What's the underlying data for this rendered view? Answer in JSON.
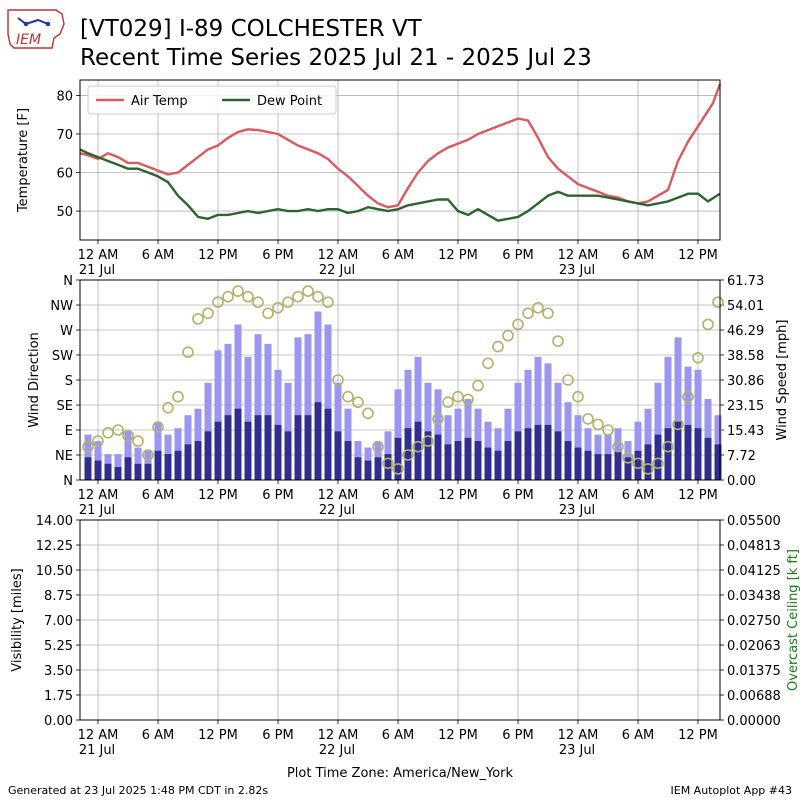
{
  "header": {
    "title_line1": "[VT029] I-89 COLCHESTER  VT",
    "title_line2": "Recent Time Series 2025 Jul 21 - 2025 Jul 23",
    "logo_text": "IEM"
  },
  "footer": {
    "generated": "Generated at 23 Jul 2025 1:48 PM CDT in 2.82s",
    "app": "IEM Autoplot App #43",
    "timezone": "Plot Time Zone: America/New_York"
  },
  "x_axis": {
    "range_hours": [
      -1.8,
      62.2
    ],
    "ticks": [
      {
        "hour": 0,
        "label": "12 AM",
        "sub": "21 Jul"
      },
      {
        "hour": 6,
        "label": "6 AM",
        "sub": ""
      },
      {
        "hour": 12,
        "label": "12 PM",
        "sub": ""
      },
      {
        "hour": 18,
        "label": "6 PM",
        "sub": ""
      },
      {
        "hour": 24,
        "label": "12 AM",
        "sub": "22 Jul"
      },
      {
        "hour": 30,
        "label": "6 AM",
        "sub": ""
      },
      {
        "hour": 36,
        "label": "12 PM",
        "sub": ""
      },
      {
        "hour": 42,
        "label": "6 PM",
        "sub": ""
      },
      {
        "hour": 48,
        "label": "12 AM",
        "sub": "23 Jul"
      },
      {
        "hour": 54,
        "label": "6 AM",
        "sub": ""
      },
      {
        "hour": 60,
        "label": "12 PM",
        "sub": ""
      }
    ]
  },
  "chart_data": [
    {
      "type": "line",
      "ylabel": "Temperature [F]",
      "ylim": [
        42.5,
        84
      ],
      "yticks": [
        50,
        60,
        70,
        80
      ],
      "grid": true,
      "legend": "top-left",
      "x_unit": "hours from 21 Jul 12 AM",
      "series": [
        {
          "name": "Air Temp",
          "color": "#d9595f",
          "points": [
            [
              -1.8,
              65
            ],
            [
              -1,
              64.5
            ],
            [
              0,
              63.5
            ],
            [
              1,
              65
            ],
            [
              2,
              64
            ],
            [
              3,
              62.5
            ],
            [
              4,
              62.5
            ],
            [
              5,
              61.5
            ],
            [
              6,
              60.5
            ],
            [
              7,
              59.5
            ],
            [
              8,
              60
            ],
            [
              9,
              62
            ],
            [
              10,
              64
            ],
            [
              11,
              66
            ],
            [
              12,
              67
            ],
            [
              13,
              69
            ],
            [
              14,
              70.5
            ],
            [
              15,
              71.2
            ],
            [
              16,
              71
            ],
            [
              17,
              70.5
            ],
            [
              18,
              70
            ],
            [
              19,
              68.5
            ],
            [
              20,
              67
            ],
            [
              21,
              66
            ],
            [
              22,
              65
            ],
            [
              23,
              63.5
            ],
            [
              24,
              61
            ],
            [
              25,
              59
            ],
            [
              26,
              56.5
            ],
            [
              27,
              54
            ],
            [
              28,
              52
            ],
            [
              29,
              51
            ],
            [
              30,
              51.5
            ],
            [
              31,
              56
            ],
            [
              32,
              60
            ],
            [
              33,
              63
            ],
            [
              34,
              65
            ],
            [
              35,
              66.5
            ],
            [
              36,
              67.5
            ],
            [
              37,
              68.5
            ],
            [
              38,
              70
            ],
            [
              39,
              71
            ],
            [
              40,
              72
            ],
            [
              41,
              73
            ],
            [
              42,
              74
            ],
            [
              43,
              73.5
            ],
            [
              44,
              69
            ],
            [
              45,
              64
            ],
            [
              46,
              61
            ],
            [
              47,
              59
            ],
            [
              48,
              57
            ],
            [
              49,
              56
            ],
            [
              50,
              55
            ],
            [
              51,
              54
            ],
            [
              52,
              53.5
            ],
            [
              53,
              52.5
            ],
            [
              54,
              52
            ],
            [
              55,
              52.5
            ],
            [
              56,
              54
            ],
            [
              57,
              55.5
            ],
            [
              58,
              63
            ],
            [
              59,
              68
            ],
            [
              60,
              72
            ],
            [
              61,
              76
            ],
            [
              61.5,
              78
            ],
            [
              62.2,
              83
            ]
          ]
        },
        {
          "name": "Dew Point",
          "color": "#2e6330",
          "points": [
            [
              -1.8,
              66
            ],
            [
              -1,
              65
            ],
            [
              0,
              64
            ],
            [
              1,
              63
            ],
            [
              2,
              62
            ],
            [
              3,
              61
            ],
            [
              4,
              61
            ],
            [
              5,
              60
            ],
            [
              6,
              59
            ],
            [
              7,
              57.5
            ],
            [
              8,
              54
            ],
            [
              9,
              51.5
            ],
            [
              10,
              48.5
            ],
            [
              11,
              48
            ],
            [
              12,
              49
            ],
            [
              13,
              49
            ],
            [
              14,
              49.5
            ],
            [
              15,
              50
            ],
            [
              16,
              49.5
            ],
            [
              17,
              50
            ],
            [
              18,
              50.5
            ],
            [
              19,
              50
            ],
            [
              20,
              50
            ],
            [
              21,
              50.5
            ],
            [
              22,
              50
            ],
            [
              23,
              50.5
            ],
            [
              24,
              50.5
            ],
            [
              25,
              49.5
            ],
            [
              26,
              50
            ],
            [
              27,
              51
            ],
            [
              28,
              50.5
            ],
            [
              29,
              50
            ],
            [
              30,
              50.5
            ],
            [
              31,
              51.5
            ],
            [
              32,
              52
            ],
            [
              33,
              52.5
            ],
            [
              34,
              53
            ],
            [
              35,
              53
            ],
            [
              36,
              50
            ],
            [
              37,
              49
            ],
            [
              38,
              50.5
            ],
            [
              39,
              49
            ],
            [
              40,
              47.5
            ],
            [
              41,
              48
            ],
            [
              42,
              48.5
            ],
            [
              43,
              50
            ],
            [
              44,
              52
            ],
            [
              45,
              54
            ],
            [
              46,
              55
            ],
            [
              47,
              54
            ],
            [
              48,
              54
            ],
            [
              49,
              54
            ],
            [
              50,
              54
            ],
            [
              51,
              53.5
            ],
            [
              52,
              53
            ],
            [
              53,
              52.5
            ],
            [
              54,
              52
            ],
            [
              55,
              51.5
            ],
            [
              56,
              52
            ],
            [
              57,
              52.5
            ],
            [
              58,
              53.5
            ],
            [
              59,
              54.5
            ],
            [
              60,
              54.5
            ],
            [
              61,
              52.5
            ],
            [
              62.2,
              54.5
            ]
          ]
        }
      ]
    },
    {
      "type": "bar",
      "ylabel": "Wind Direction",
      "ylabel_right": "Wind Speed [mph]",
      "direction_ticks": [
        "N",
        "NE",
        "E",
        "SE",
        "S",
        "SW",
        "W",
        "NW",
        "N"
      ],
      "speed_ticks": [
        "0.00",
        "7.72",
        "15.43",
        "23.15",
        "30.86",
        "38.58",
        "46.29",
        "54.01",
        "61.73"
      ],
      "speed_ylim": [
        0,
        61.73
      ],
      "grid": true,
      "x_unit": "hours from 21 Jul 12 AM",
      "series": [
        {
          "name": "",
          "color": "#9b96f0",
          "hourly_values": [
            14,
            12,
            8,
            8,
            15,
            10,
            9,
            18,
            14,
            16,
            20,
            22,
            30,
            40,
            42,
            48,
            38,
            45,
            42,
            34,
            30,
            44,
            45,
            52,
            48,
            30,
            22,
            12,
            10,
            12,
            15,
            28,
            34,
            38,
            30,
            28,
            20,
            22,
            25,
            22,
            18,
            16,
            22,
            30,
            34,
            38,
            36,
            30,
            24,
            20,
            16,
            14,
            14,
            16,
            12,
            18,
            22,
            30,
            38,
            44,
            35,
            34,
            25,
            20
          ]
        },
        {
          "name": "",
          "color": "#302e8e",
          "hourly_values": [
            7,
            6,
            5,
            4,
            7,
            5,
            5,
            9,
            8,
            9,
            11,
            12,
            15,
            18,
            20,
            22,
            18,
            20,
            20,
            17,
            15,
            20,
            20,
            24,
            22,
            15,
            12,
            7,
            6,
            7,
            8,
            13,
            16,
            18,
            15,
            14,
            11,
            12,
            13,
            12,
            10,
            9,
            12,
            15,
            16,
            17,
            17,
            15,
            12,
            10,
            9,
            8,
            8,
            9,
            7,
            9,
            11,
            14,
            16,
            18,
            17,
            16,
            13,
            11
          ]
        },
        {
          "name": "",
          "type": "scatter",
          "color": "#b2b06a",
          "unit": "degrees",
          "hourly_values": [
            60,
            70,
            85,
            90,
            80,
            70,
            45,
            95,
            130,
            150,
            230,
            290,
            300,
            320,
            330,
            340,
            330,
            320,
            300,
            310,
            320,
            330,
            340,
            330,
            320,
            180,
            150,
            140,
            120,
            60,
            30,
            20,
            45,
            60,
            70,
            110,
            140,
            150,
            145,
            170,
            210,
            240,
            260,
            280,
            300,
            310,
            300,
            250,
            180,
            150,
            110,
            100,
            90,
            60,
            40,
            30,
            20,
            30,
            60,
            100,
            150,
            220,
            280,
            320
          ]
        }
      ]
    },
    {
      "type": "line",
      "ylabel": "Visibility [miles]",
      "ylabel_right": "Overcast Ceiling [k ft]",
      "ylabel_right_color": "#1a7a1a",
      "visibility_ticks": [
        "0.00",
        "1.75",
        "3.50",
        "5.25",
        "7.00",
        "8.75",
        "10.50",
        "12.25",
        "14.00"
      ],
      "ceiling_ticks": [
        "0.00000",
        "0.00688",
        "0.01375",
        "0.02063",
        "0.02750",
        "0.03438",
        "0.04125",
        "0.04813",
        "0.05500"
      ],
      "ylim": [
        0,
        14
      ],
      "grid": true,
      "series": []
    }
  ]
}
